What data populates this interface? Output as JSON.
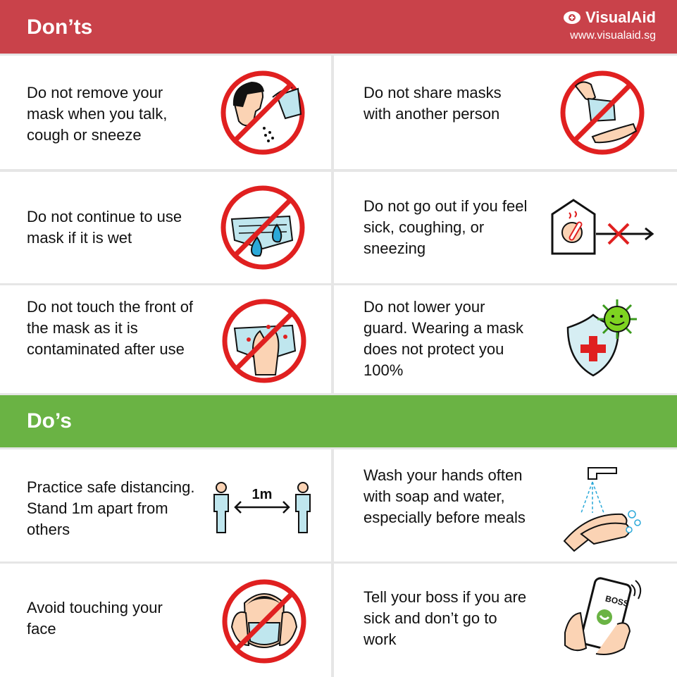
{
  "donts": {
    "title": "Don’ts",
    "brand": {
      "name": "VisualAid",
      "url": "www.visualaid.sg"
    },
    "items": [
      {
        "text": "Do not remove your mask when you talk, cough or sneeze",
        "icon": "no-sneezing-mask-removed-icon"
      },
      {
        "text": "Do not share masks with another person",
        "icon": "no-sharing-mask-icon"
      },
      {
        "text": "Do not continue to use mask if it is wet",
        "icon": "no-wet-mask-icon"
      },
      {
        "text": "Do not go out if you feel sick, coughing, or sneezing",
        "icon": "stay-home-sick-icon"
      },
      {
        "text": "Do not touch the front of the mask as it is contaminated after use",
        "icon": "no-touch-mask-front-icon"
      },
      {
        "text": "Do not lower your guard. Wearing a mask does not protect you 100%",
        "icon": "shield-virus-icon"
      }
    ]
  },
  "dos": {
    "title": "Do’s",
    "distance_label": "1m",
    "items": [
      {
        "text": "Practice safe distancing. Stand 1m apart from others",
        "icon": "safe-distancing-icon"
      },
      {
        "text": "Wash your hands often with soap and water, especially before meals",
        "icon": "hand-washing-icon"
      },
      {
        "text": "Avoid touching your face",
        "icon": "no-face-touching-icon"
      },
      {
        "text": "Tell your boss if you are sick and don’t go to work",
        "icon": "call-boss-phone-icon"
      }
    ]
  },
  "colors": {
    "donts_header": "#c9424a",
    "dos_header": "#6ab344",
    "prohibition": "#e02020"
  }
}
